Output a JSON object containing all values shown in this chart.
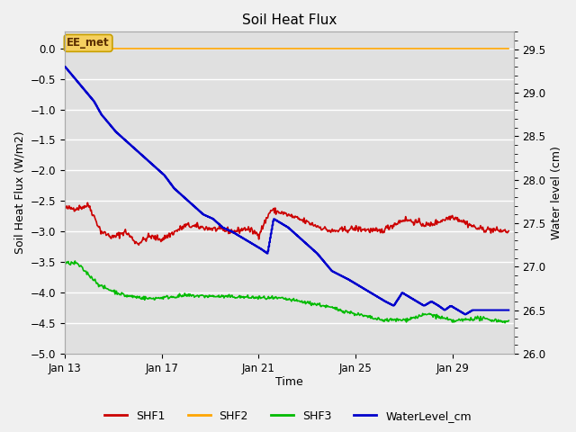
{
  "title": "Soil Heat Flux",
  "xlabel": "Time",
  "ylabel_left": "Soil Heat Flux (W/m2)",
  "ylabel_right": "Water level (cm)",
  "ylim_left": [
    -5.0,
    0.27
  ],
  "ylim_right": [
    26.0,
    29.7
  ],
  "fig_bg_color": "#f0f0f0",
  "plot_bg_color": "#e0e0e0",
  "grid_color": "#ffffff",
  "annotation_label": "EE_met",
  "annotation_bg": "#f5d060",
  "annotation_border": "#c8a000",
  "SHF1_color": "#cc0000",
  "SHF2_color": "#ffa500",
  "SHF3_color": "#00bb00",
  "WaterLevel_color": "#0000cc",
  "legend_items": [
    "SHF1",
    "SHF2",
    "SHF3",
    "WaterLevel_cm"
  ],
  "x_ticks_pos": [
    0,
    4,
    8,
    12,
    16
  ],
  "x_tick_labels": [
    "Jan 13",
    "Jan 17",
    "Jan 21",
    "Jan 25",
    "Jan 29"
  ],
  "xlim": [
    0,
    18.5
  ],
  "yticks_left": [
    -5.0,
    -4.5,
    -4.0,
    -3.5,
    -3.0,
    -2.5,
    -2.0,
    -1.5,
    -1.0,
    -0.5,
    0.0
  ],
  "yticks_right": [
    26.0,
    26.5,
    27.0,
    27.5,
    28.0,
    28.5,
    29.0,
    29.5
  ],
  "wl_x": [
    0,
    0.3,
    0.6,
    0.9,
    1.2,
    1.5,
    1.8,
    2.1,
    2.5,
    2.9,
    3.3,
    3.7,
    4.1,
    4.5,
    4.9,
    5.3,
    5.7,
    6.1,
    6.5,
    6.9,
    7.2,
    7.5,
    7.8,
    8.1,
    8.35,
    8.6,
    8.9,
    9.2,
    9.6,
    10.0,
    10.4,
    10.7,
    11.0,
    11.35,
    11.7,
    12.0,
    12.3,
    12.6,
    12.9,
    13.2,
    13.55,
    13.9,
    14.2,
    14.5,
    14.8,
    15.1,
    15.4,
    15.65,
    15.9,
    16.2,
    16.5,
    16.8,
    17.1,
    17.4,
    17.7,
    18.0,
    18.3
  ],
  "wl_y": [
    29.3,
    29.2,
    29.1,
    29.0,
    28.9,
    28.75,
    28.65,
    28.55,
    28.45,
    28.35,
    28.25,
    28.15,
    28.05,
    27.9,
    27.8,
    27.7,
    27.6,
    27.55,
    27.45,
    27.4,
    27.35,
    27.3,
    27.25,
    27.2,
    27.15,
    27.55,
    27.5,
    27.45,
    27.35,
    27.25,
    27.15,
    27.05,
    26.95,
    26.9,
    26.85,
    26.8,
    26.75,
    26.7,
    26.65,
    26.6,
    26.55,
    26.7,
    26.65,
    26.6,
    26.55,
    26.6,
    26.55,
    26.5,
    26.55,
    26.5,
    26.45,
    26.5,
    26.5,
    26.5,
    26.5,
    26.5,
    26.5
  ]
}
